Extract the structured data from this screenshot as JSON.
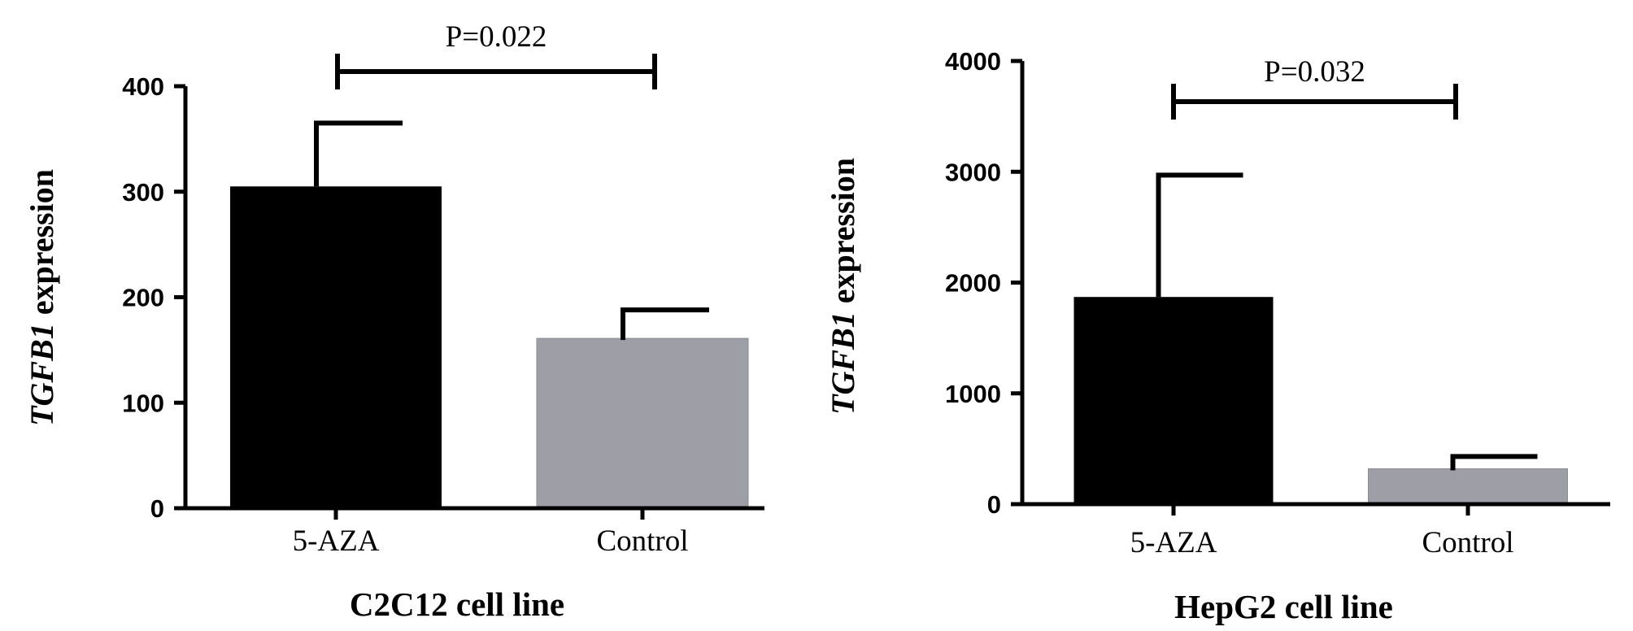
{
  "chart_data": [
    {
      "type": "bar",
      "title": "",
      "xlabel": "C2C12 cell line",
      "ylabel_gene": "TGFB1",
      "ylabel_suffix": " expression",
      "categories": [
        "5-AZA",
        "Control"
      ],
      "values": [
        305,
        161
      ],
      "error_upper": [
        365,
        188
      ],
      "bar_colors": [
        "#000000",
        "#9e9ea6"
      ],
      "ylim": [
        0,
        400
      ],
      "yticks": [
        0,
        100,
        200,
        300,
        400
      ],
      "yticklabels": [
        "0",
        "100",
        "200",
        "300",
        "400"
      ],
      "significance": {
        "text": "P=0.022",
        "between": [
          "5-AZA",
          "Control"
        ]
      },
      "grid": false
    },
    {
      "type": "bar",
      "title": "",
      "xlabel": "HepG2 cell line",
      "ylabel_gene": "TGFB1",
      "ylabel_suffix": " expression",
      "categories": [
        "5-AZA",
        "Control"
      ],
      "values": [
        1870,
        320
      ],
      "error_upper": [
        2970,
        430
      ],
      "bar_colors": [
        "#000000",
        "#9e9ea6"
      ],
      "ylim": [
        0,
        4000
      ],
      "yticks": [
        0,
        1000,
        2000,
        3000,
        4000
      ],
      "yticklabels": [
        "0",
        "1000",
        "2000",
        "3000",
        "4000"
      ],
      "significance": {
        "text": "P=0.032",
        "between": [
          "5-AZA",
          "Control"
        ]
      },
      "grid": false
    }
  ]
}
